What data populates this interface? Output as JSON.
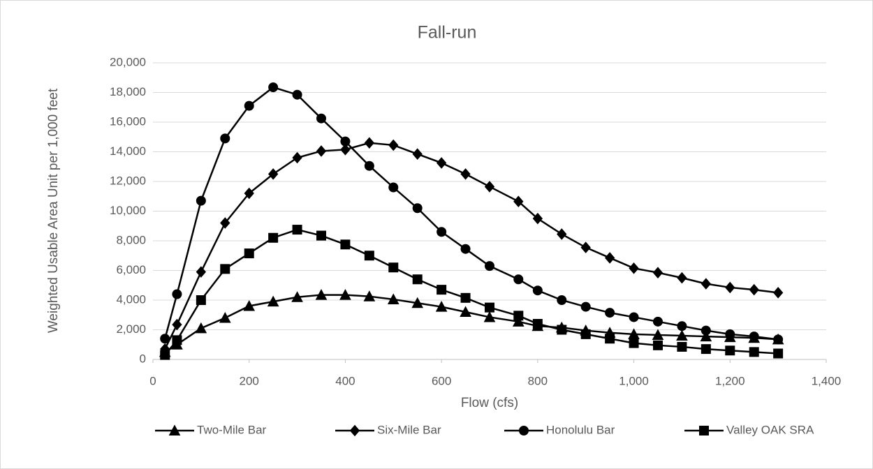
{
  "chart_data": {
    "type": "line",
    "title": "Fall-run",
    "xlabel": "Flow (cfs)",
    "ylabel": "Weighted Usable Area Unit per 1,000 feet",
    "x": [
      25,
      50,
      100,
      150,
      200,
      250,
      300,
      350,
      400,
      450,
      500,
      550,
      600,
      650,
      700,
      760,
      800,
      850,
      900,
      950,
      1000,
      1050,
      1100,
      1150,
      1200,
      1250,
      1300
    ],
    "series": [
      {
        "name": "Two-Mile Bar",
        "color": "#000000",
        "marker": "triangle",
        "values": [
          500,
          1000,
          2100,
          2800,
          3600,
          3900,
          4200,
          4350,
          4350,
          4250,
          4050,
          3800,
          3550,
          3200,
          2850,
          2550,
          2250,
          2150,
          1950,
          1800,
          1700,
          1650,
          1600,
          1550,
          1500,
          1450,
          1350
        ]
      },
      {
        "name": "Six-Mile Bar",
        "color": "#000000",
        "marker": "diamond",
        "values": [
          700,
          2350,
          5900,
          9200,
          11200,
          12500,
          13600,
          14050,
          14150,
          14600,
          14450,
          13850,
          13250,
          12500,
          11650,
          10650,
          9500,
          8450,
          7550,
          6850,
          6150,
          5850,
          5500,
          5100,
          4850,
          4700,
          4500
        ]
      },
      {
        "name": "Honolulu Bar",
        "color": "#000000",
        "marker": "circle",
        "values": [
          1400,
          4400,
          10700,
          14900,
          17100,
          18350,
          17850,
          16250,
          14700,
          13050,
          11600,
          10200,
          8600,
          7450,
          6300,
          5400,
          4650,
          4000,
          3550,
          3150,
          2850,
          2550,
          2250,
          1950,
          1700,
          1550,
          1350
        ]
      },
      {
        "name": "Valley OAK SRA",
        "color": "#000000",
        "marker": "square",
        "values": [
          300,
          1300,
          4000,
          6100,
          7150,
          8200,
          8750,
          8350,
          7750,
          7000,
          6200,
          5400,
          4700,
          4150,
          3500,
          2950,
          2400,
          2000,
          1700,
          1400,
          1100,
          950,
          850,
          700,
          600,
          500,
          400
        ]
      }
    ],
    "xlim": [
      0,
      1400
    ],
    "xticks": [
      0,
      200,
      400,
      600,
      800,
      {
        "value": 1000,
        "label": "1,000"
      },
      {
        "value": 1200,
        "label": "1,200"
      },
      {
        "value": 1400,
        "label": "1,400"
      }
    ],
    "ylim": [
      0,
      20000
    ],
    "yticks": [
      0,
      {
        "value": 2000,
        "label": "2,000"
      },
      {
        "value": 4000,
        "label": "4,000"
      },
      {
        "value": 6000,
        "label": "6,000"
      },
      {
        "value": 8000,
        "label": "8,000"
      },
      {
        "value": 10000,
        "label": "10,000"
      },
      {
        "value": 12000,
        "label": "12,000"
      },
      {
        "value": 14000,
        "label": "14,000"
      },
      {
        "value": 16000,
        "label": "16,000"
      },
      {
        "value": 18000,
        "label": "18,000"
      },
      {
        "value": 20000,
        "label": "20,000"
      }
    ],
    "grid": true,
    "legend": "bottom"
  }
}
